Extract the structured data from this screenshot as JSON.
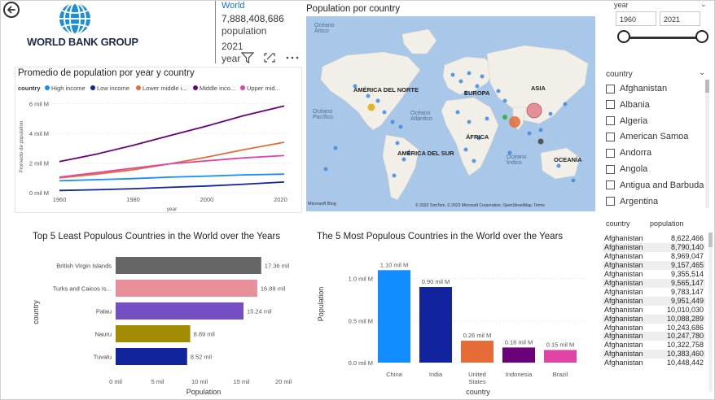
{
  "header": {
    "logo_text": "WORLD BANK GROUP",
    "back_icon": "back-arrow-icon"
  },
  "card": {
    "title": "World",
    "value": "7,888,408,686",
    "unit": "population",
    "year_value": "2021",
    "year_label": "year"
  },
  "line_chart_title": "Promedio de population por year y country",
  "map": {
    "title": "Population por country",
    "labels": {
      "oceano_artico": "Océano Ártico",
      "america_norte": "AMÉRICA DEL NORTE",
      "europa": "EUROPA",
      "asia": "ASIA",
      "oceano_pacifico": "Océano Pacífico",
      "oceano_atlantico": "Océano Atlántico",
      "africa": "ÁFRICA",
      "america_sur": "AMÉRICA DEL SUR",
      "oceano_indico": "Océano Índico",
      "oceania": "OCEANÍA"
    },
    "attribution": "© 2023 TomTom, © 2023 Microsoft Corporation, OpenStreetMap, Terms",
    "brand": "Microsoft Bing"
  },
  "slicer": {
    "label": "year",
    "from": "1960",
    "to": "2021",
    "from_value": 1960,
    "to_value": 2021
  },
  "country_filter": {
    "label": "country",
    "items": [
      "Afghanistan",
      "Albania",
      "Algeria",
      "American Samoa",
      "Andorra",
      "Angola",
      "Antigua and Barbuda",
      "Argentina"
    ]
  },
  "table": {
    "headers": [
      "country",
      "population"
    ],
    "rows": [
      [
        "Afghanistan",
        "8,622,466"
      ],
      [
        "Afghanistan",
        "8,790,140"
      ],
      [
        "Afghanistan",
        "8,969,047"
      ],
      [
        "Afghanistan",
        "9,157,465"
      ],
      [
        "Afghanistan",
        "9,355,514"
      ],
      [
        "Afghanistan",
        "9,565,147"
      ],
      [
        "Afghanistan",
        "9,783,147"
      ],
      [
        "Afghanistan",
        "9,951,449"
      ],
      [
        "Afghanistan",
        "10,010,030"
      ],
      [
        "Afghanistan",
        "10,088,289"
      ],
      [
        "Afghanistan",
        "10,243,686"
      ],
      [
        "Afghanistan",
        "10,247,780"
      ],
      [
        "Afghanistan",
        "10,322,758"
      ],
      [
        "Afghanistan",
        "10,383,460"
      ],
      [
        "Afghanistan",
        "10,448,442"
      ]
    ]
  },
  "chart_data": [
    {
      "type": "line",
      "title": "Promedio de population por year y country",
      "legend_title": "country",
      "xlabel": "year",
      "ylabel": "Promedio de population",
      "x": [
        1960,
        1970,
        1980,
        1990,
        2000,
        2010,
        2021
      ],
      "x_ticks": [
        "1960",
        "1980",
        "2000",
        "2020"
      ],
      "y_ticks": [
        "0 mil M",
        "2 mil M",
        "4 mil M",
        "6 mil M"
      ],
      "ylim": [
        0,
        6.2
      ],
      "xlim": [
        1958,
        2023
      ],
      "series": [
        {
          "name": "High income",
          "color": "#118dff",
          "values": [
            0.8,
            0.88,
            0.95,
            1.05,
            1.12,
            1.2,
            1.25
          ]
        },
        {
          "name": "Low income",
          "color": "#12239e",
          "values": [
            0.15,
            0.2,
            0.27,
            0.36,
            0.45,
            0.57,
            0.72
          ]
        },
        {
          "name": "Lower middle i...",
          "color": "#e66c37",
          "values": [
            1.0,
            1.25,
            1.55,
            1.95,
            2.4,
            2.9,
            3.4
          ]
        },
        {
          "name": "Middle inco...",
          "color": "#6b007b",
          "values": [
            2.1,
            2.6,
            3.2,
            3.85,
            4.5,
            5.2,
            5.85
          ]
        },
        {
          "name": "Upper mid...",
          "color": "#e044a7",
          "values": [
            1.05,
            1.35,
            1.65,
            1.95,
            2.15,
            2.35,
            2.5
          ]
        }
      ]
    },
    {
      "type": "bar",
      "orientation": "horizontal",
      "title": "Top 5 Least Populous Countries in the World over the Years",
      "xlabel": "Population",
      "ylabel": "country",
      "categories": [
        "British Virgin Islands",
        "Turks and Caicos Is...",
        "Palau",
        "Nauru",
        "Tuvalu"
      ],
      "values": [
        17.36,
        16.88,
        15.24,
        8.89,
        8.52
      ],
      "data_labels": [
        "17.36 mil",
        "16.88 mil",
        "15.24 mil",
        "8.89 mil",
        "8.52 mil"
      ],
      "colors": [
        "#666666",
        "#e8909a",
        "#744ec2",
        "#a38b00",
        "#12239e"
      ],
      "x_ticks": [
        "0 mil",
        "5 mil",
        "10 mil",
        "15 mil",
        "20 mil"
      ],
      "xlim": [
        0,
        20
      ]
    },
    {
      "type": "bar",
      "title": "The 5 Most Populous Countries in the World over the Years",
      "xlabel": "country",
      "ylabel": "Population",
      "categories": [
        "China",
        "India",
        "United States",
        "Indonesia",
        "Brazil"
      ],
      "values": [
        1.1,
        0.9,
        0.26,
        0.18,
        0.15
      ],
      "data_labels": [
        "1.10 mil M",
        "0.90 mil M",
        "0.26 mil M",
        "0.18 mil M",
        "0.15 mil M"
      ],
      "colors": [
        "#118dff",
        "#12239e",
        "#e66c37",
        "#6b007b",
        "#e044a7"
      ],
      "y_ticks": [
        "0.0 mil M",
        "0.5 mil M",
        "1.0 mil M"
      ],
      "ylim": [
        0,
        1.2
      ]
    }
  ]
}
